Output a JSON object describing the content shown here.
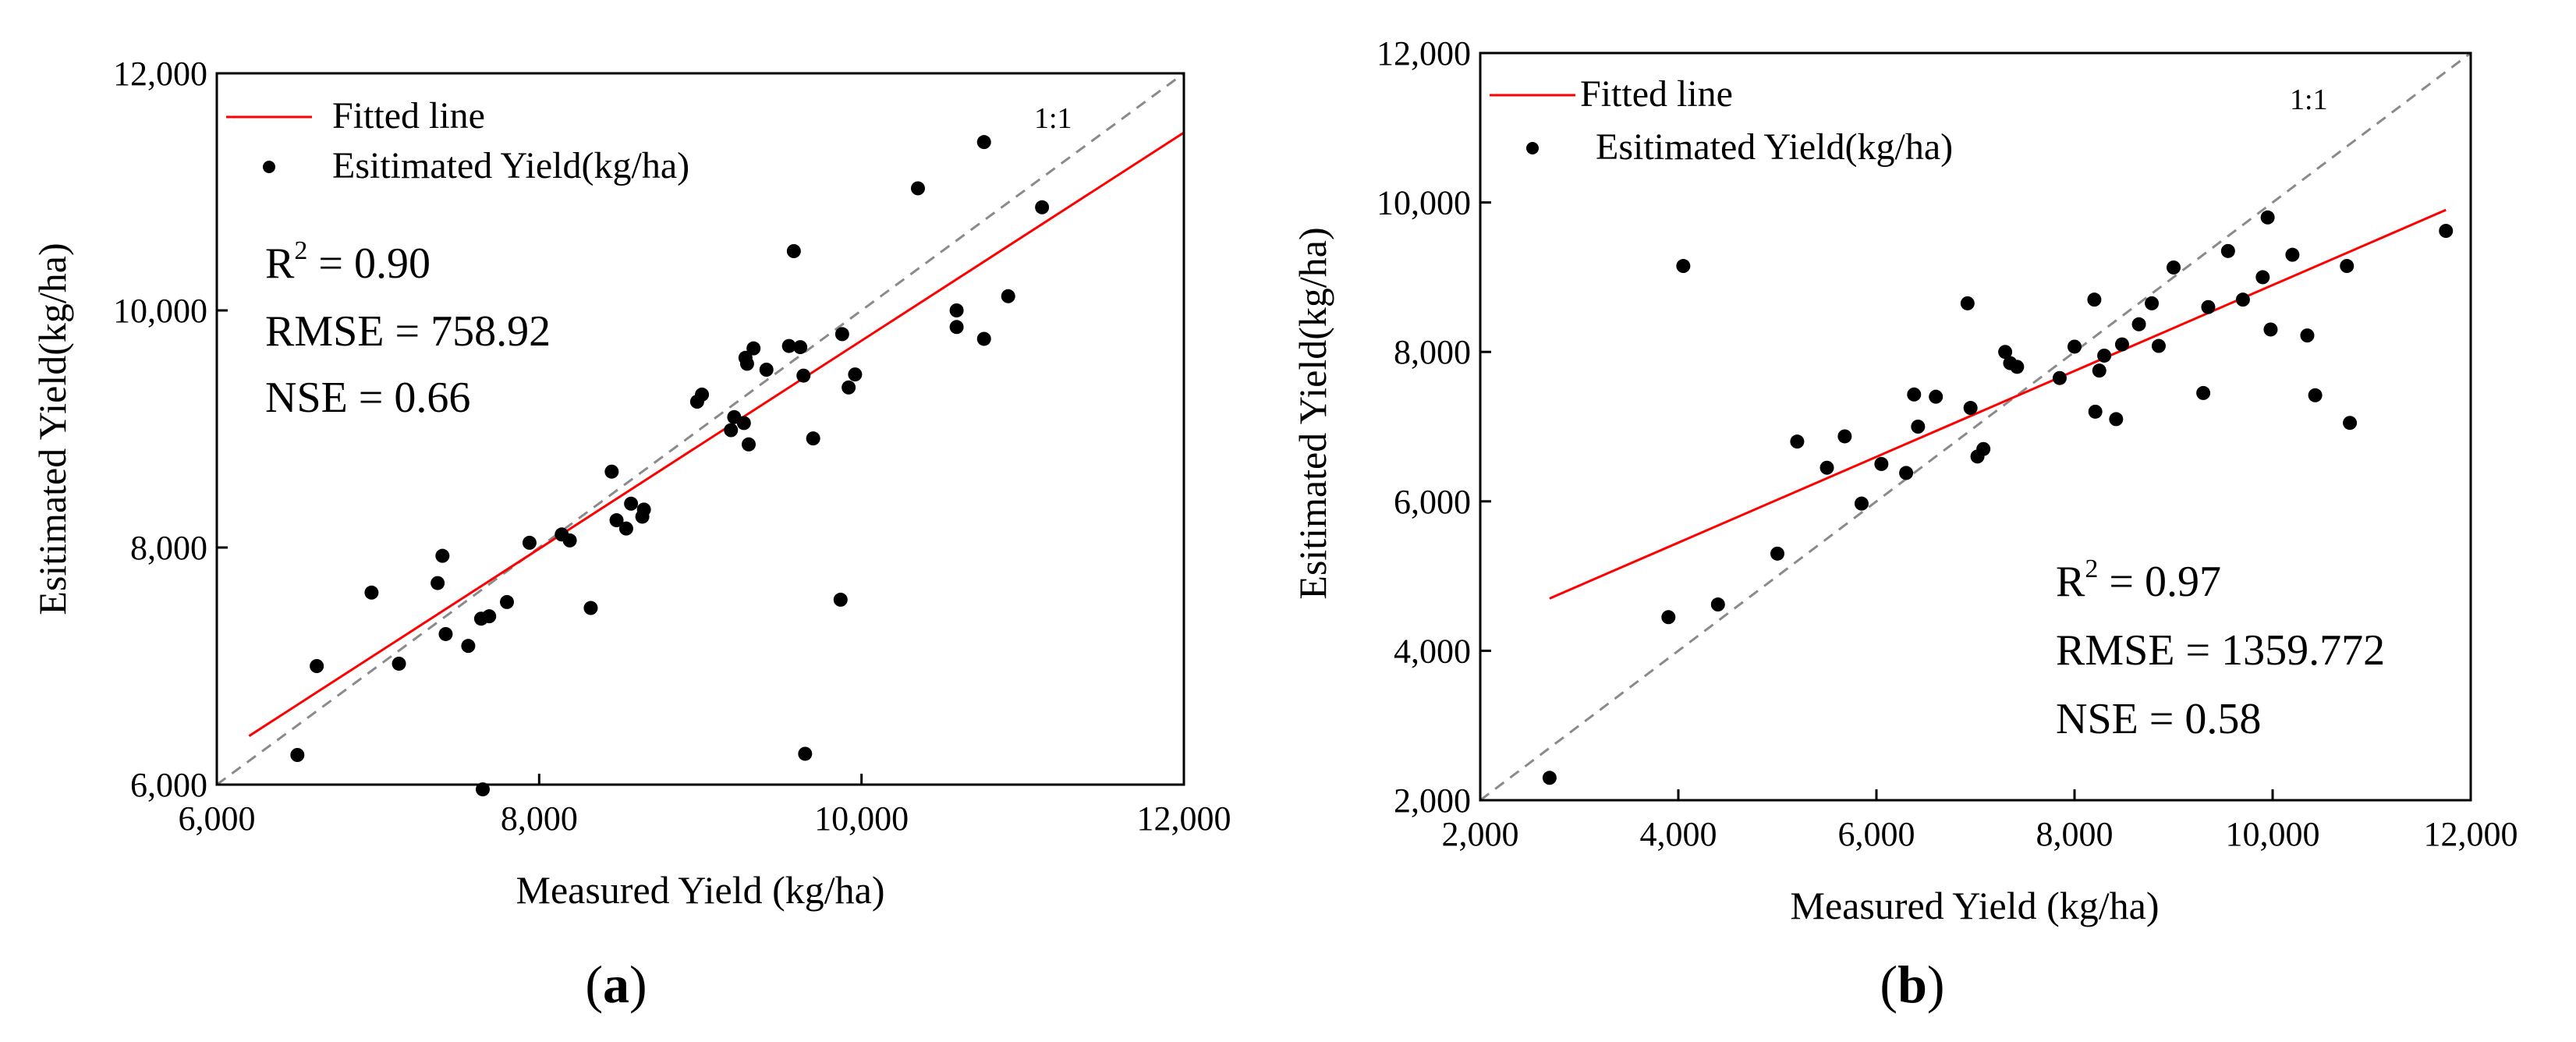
{
  "chart_data": [
    {
      "type": "scatter",
      "panel_label": "(a)",
      "xlabel": "Measured Yield (kg/ha)",
      "ylabel": "Esitimated Yield(kg/ha)",
      "xlim": [
        6000,
        12000
      ],
      "ylim": [
        6000,
        12000
      ],
      "xticks": [
        6000,
        8000,
        10000,
        12000
      ],
      "yticks": [
        6000,
        8000,
        10000,
        12000
      ],
      "xtick_labels": [
        "6,000",
        "8,000",
        "10,000",
        "12,000"
      ],
      "ytick_labels": [
        "6,000",
        "8,000",
        "10,000",
        "12,000"
      ],
      "legend": {
        "line": "Fitted line",
        "points": "Esitimated Yield(kg/ha)",
        "placement": "top-left"
      },
      "one_to_one_label": "1:1",
      "fitted_line": {
        "x": [
          6200,
          12000
        ],
        "y": [
          6410,
          11500
        ]
      },
      "stats": {
        "r2_label": "R",
        "r2_value": " = 0.90",
        "rmse": "RMSE = 758.92",
        "nse": "NSE = 0.66"
      },
      "points": [
        [
          6500,
          6250
        ],
        [
          6620,
          7000
        ],
        [
          6960,
          7620
        ],
        [
          7130,
          7020
        ],
        [
          7370,
          7700
        ],
        [
          7400,
          7930
        ],
        [
          7420,
          7270
        ],
        [
          7560,
          7170
        ],
        [
          7640,
          7400
        ],
        [
          7690,
          7420
        ],
        [
          7800,
          7540
        ],
        [
          7940,
          8040
        ],
        [
          8140,
          8110
        ],
        [
          8190,
          8060
        ],
        [
          8320,
          7490
        ],
        [
          8450,
          8640
        ],
        [
          8480,
          8230
        ],
        [
          8540,
          8160
        ],
        [
          8570,
          8370
        ],
        [
          8640,
          8260
        ],
        [
          8650,
          8320
        ],
        [
          8980,
          9230
        ],
        [
          9010,
          9290
        ],
        [
          9190,
          8990
        ],
        [
          9210,
          9100
        ],
        [
          9270,
          9050
        ],
        [
          9280,
          9600
        ],
        [
          9290,
          9550
        ],
        [
          9300,
          8870
        ],
        [
          9330,
          9680
        ],
        [
          9410,
          9500
        ],
        [
          9550,
          9700
        ],
        [
          9580,
          10500
        ],
        [
          9620,
          9690
        ],
        [
          9640,
          9450
        ],
        [
          9700,
          8920
        ],
        [
          9870,
          7560
        ],
        [
          9880,
          9800
        ],
        [
          9920,
          9350
        ],
        [
          9960,
          9460
        ],
        [
          10350,
          11030
        ],
        [
          10590,
          10000
        ],
        [
          10590,
          9860
        ],
        [
          10760,
          11420
        ],
        [
          10760,
          9760
        ],
        [
          10910,
          10120
        ],
        [
          11120,
          10870
        ],
        [
          9650,
          6260
        ],
        [
          7650,
          5960
        ]
      ]
    },
    {
      "type": "scatter",
      "panel_label": "(b)",
      "xlabel": "Measured Yield (kg/ha)",
      "ylabel": "Esitimated Yield(kg/ha)",
      "xlim": [
        2000,
        12000
      ],
      "ylim": [
        2000,
        12000
      ],
      "xticks": [
        2000,
        4000,
        6000,
        8000,
        10000,
        12000
      ],
      "yticks": [
        2000,
        4000,
        6000,
        8000,
        10000,
        12000
      ],
      "xtick_labels": [
        "2,000",
        "4,000",
        "6,000",
        "8,000",
        "10,000",
        "12,000"
      ],
      "ytick_labels": [
        "2,000",
        "4,000",
        "6,000",
        "8,000",
        "10,000",
        "12,000"
      ],
      "legend": {
        "line": "Fitted line",
        "points": "Esitimated Yield(kg/ha)",
        "placement": "top-left"
      },
      "one_to_one_label": "1:1",
      "fitted_line": {
        "x": [
          2700,
          11750
        ],
        "y": [
          4700,
          9900
        ]
      },
      "stats": {
        "r2_label": "R",
        "r2_value": " = 0.97",
        "rmse": "RMSE = 1359.772",
        "nse": "NSE = 0.58"
      },
      "points": [
        [
          2700,
          2300
        ],
        [
          3900,
          4450
        ],
        [
          4050,
          9150
        ],
        [
          4400,
          4620
        ],
        [
          5000,
          5300
        ],
        [
          5200,
          6800
        ],
        [
          5500,
          6450
        ],
        [
          5680,
          6870
        ],
        [
          5850,
          5970
        ],
        [
          6050,
          6500
        ],
        [
          6300,
          6380
        ],
        [
          6380,
          7430
        ],
        [
          6420,
          7000
        ],
        [
          6600,
          7400
        ],
        [
          6920,
          8650
        ],
        [
          6950,
          7250
        ],
        [
          7020,
          6600
        ],
        [
          7080,
          6700
        ],
        [
          7300,
          8000
        ],
        [
          7350,
          7850
        ],
        [
          7420,
          7800
        ],
        [
          7850,
          7650
        ],
        [
          8000,
          8070
        ],
        [
          8200,
          8700
        ],
        [
          8210,
          7200
        ],
        [
          8250,
          7750
        ],
        [
          8300,
          7950
        ],
        [
          8420,
          7100
        ],
        [
          8480,
          8100
        ],
        [
          8650,
          8370
        ],
        [
          8780,
          8650
        ],
        [
          8850,
          8080
        ],
        [
          9000,
          9130
        ],
        [
          9300,
          7450
        ],
        [
          9350,
          8600
        ],
        [
          9550,
          9350
        ],
        [
          9700,
          8700
        ],
        [
          9900,
          9000
        ],
        [
          9950,
          9800
        ],
        [
          9980,
          8300
        ],
        [
          10200,
          9300
        ],
        [
          10350,
          8220
        ],
        [
          10430,
          7420
        ],
        [
          10750,
          9150
        ],
        [
          10780,
          7050
        ],
        [
          11750,
          9620
        ]
      ]
    }
  ]
}
